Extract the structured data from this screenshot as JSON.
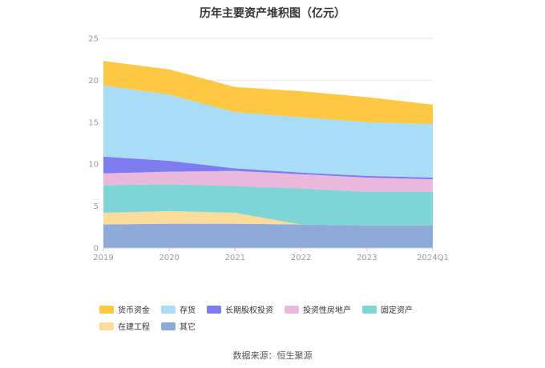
{
  "chart_data": {
    "type": "area",
    "title": "历年主要资产堆积图（亿元）",
    "categories": [
      "2019",
      "2020",
      "2021",
      "2022",
      "2023",
      "2024Q1"
    ],
    "ylim": [
      0,
      25
    ],
    "yticks": [
      0,
      5,
      10,
      15,
      20,
      25
    ],
    "grid": true,
    "stacked": true,
    "legend_position": "bottom",
    "series": [
      {
        "name": "其它",
        "color": "#8eaad8",
        "values": [
          2.8,
          2.9,
          2.9,
          2.8,
          2.7,
          2.7
        ]
      },
      {
        "name": "在建工程",
        "color": "#fbdc9a",
        "values": [
          1.4,
          1.5,
          1.3,
          0.0,
          0.0,
          0.0
        ]
      },
      {
        "name": "固定资产",
        "color": "#7fd5d5",
        "values": [
          3.3,
          3.2,
          3.2,
          4.3,
          4.0,
          4.0
        ]
      },
      {
        "name": "投资性房地产",
        "color": "#eab8dc",
        "values": [
          1.4,
          1.5,
          1.8,
          1.7,
          1.7,
          1.5
        ]
      },
      {
        "name": "长期股权投资",
        "color": "#7f7cf0",
        "values": [
          2.0,
          1.3,
          0.3,
          0.2,
          0.2,
          0.2
        ]
      },
      {
        "name": "存货",
        "color": "#a9ddf6",
        "values": [
          8.5,
          7.9,
          6.7,
          6.6,
          6.4,
          6.4
        ]
      },
      {
        "name": "货币资金",
        "color": "#fdc843",
        "values": [
          2.9,
          3.0,
          3.0,
          3.1,
          3.0,
          2.3
        ]
      }
    ],
    "legend_order": [
      "货币资金",
      "存货",
      "长期股权投资",
      "投资性房地产",
      "固定资产",
      "在建工程",
      "其它"
    ]
  },
  "source_text": "数据来源：恒生聚源"
}
